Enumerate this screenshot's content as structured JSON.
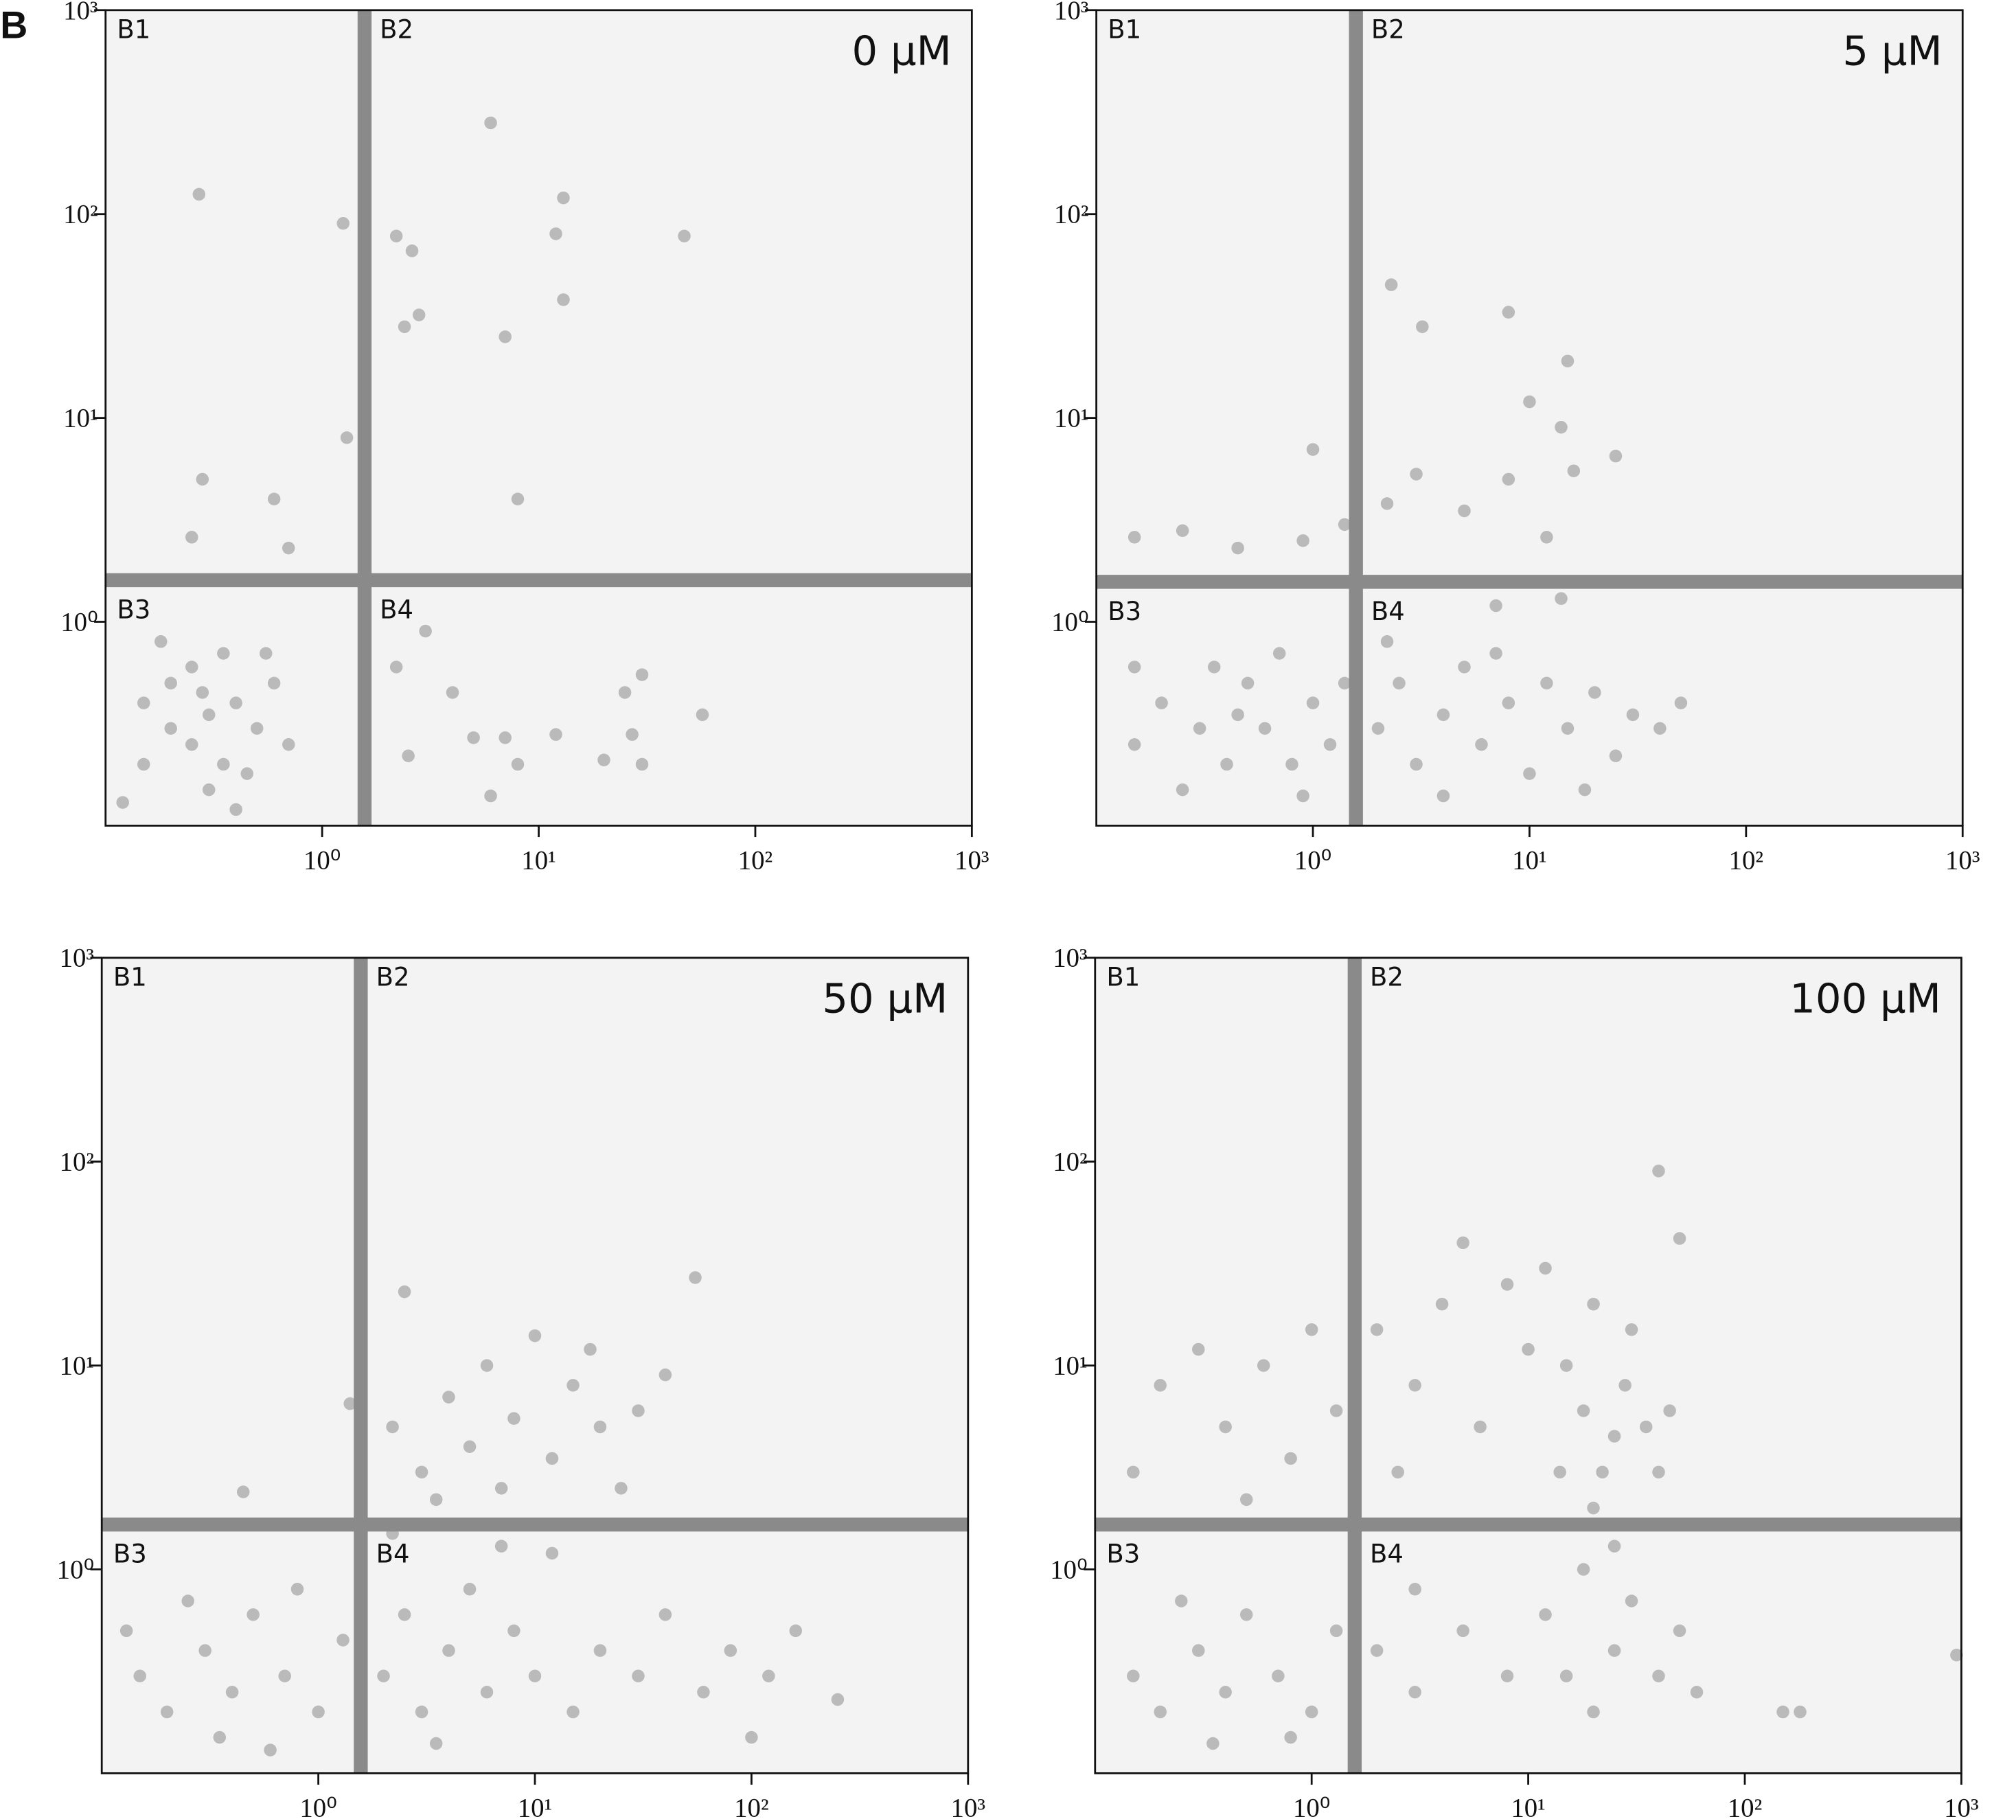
{
  "figure_label": "B",
  "chart_data": [
    {
      "type": "scatter",
      "title": "0 μM",
      "quadrant_labels": [
        "B1",
        "B2",
        "B3",
        "B4"
      ],
      "color": "#8a8a8a",
      "xscale": "log",
      "yscale": "log",
      "xlim": [
        0.1,
        1000
      ],
      "ylim": [
        0.1,
        1000
      ],
      "xticks": [
        {
          "value": 1,
          "label": "10⁰"
        },
        {
          "value": 10,
          "label": "10¹"
        },
        {
          "value": 100,
          "label": "10²"
        },
        {
          "value": 1000,
          "label": "10³"
        }
      ],
      "yticks": [
        {
          "value": 1,
          "label": "10⁰"
        },
        {
          "value": 10,
          "label": "10¹"
        },
        {
          "value": 100,
          "label": "10²"
        },
        {
          "value": 1000,
          "label": "10³"
        }
      ],
      "quadrant_x": 1.57,
      "quadrant_y": 1.6,
      "x": [
        0.15,
        0.2,
        0.25,
        0.3,
        0.35,
        0.4,
        0.3,
        0.2,
        0.5,
        0.6,
        0.25,
        0.15,
        0.45,
        0.7,
        0.35,
        0.12,
        0.55,
        0.28,
        0.4,
        0.18,
        0.27,
        1.25,
        1.3,
        0.28,
        0.6,
        0.7,
        0.25,
        2.2,
        2.6,
        2.8,
        2.4,
        6,
        12,
        13,
        13,
        47,
        7,
        8,
        2.2,
        3,
        4,
        5,
        7,
        8,
        12,
        25,
        30,
        27,
        57,
        20,
        30,
        2.5,
        6
      ],
      "y": [
        0.2,
        0.3,
        0.25,
        0.35,
        0.2,
        0.4,
        0.15,
        0.5,
        0.3,
        0.5,
        0.6,
        0.4,
        0.18,
        0.25,
        0.7,
        0.13,
        0.7,
        0.45,
        0.12,
        0.8,
        125,
        90,
        8,
        5,
        4,
        2.3,
        2.6,
        78,
        66,
        32,
        28,
        280,
        80,
        120,
        38,
        78,
        25,
        4,
        0.6,
        0.9,
        0.45,
        0.27,
        0.27,
        0.2,
        0.28,
        0.45,
        0.55,
        0.28,
        0.35,
        0.21,
        0.2,
        0.22,
        0.14
      ]
    },
    {
      "type": "scatter",
      "title": "5 μM",
      "quadrant_labels": [
        "B1",
        "B2",
        "B3",
        "B4"
      ],
      "color": "#8a8a8a",
      "xscale": "log",
      "yscale": "log",
      "xlim": [
        0.1,
        1000
      ],
      "ylim": [
        0.1,
        1000
      ],
      "xticks": [
        {
          "value": 1,
          "label": "10⁰"
        },
        {
          "value": 10,
          "label": "10¹"
        },
        {
          "value": 100,
          "label": "10²"
        },
        {
          "value": 1000,
          "label": "10³"
        }
      ],
      "yticks": [
        {
          "value": 1,
          "label": "10⁰"
        },
        {
          "value": 10,
          "label": "10¹"
        },
        {
          "value": 100,
          "label": "10²"
        },
        {
          "value": 1000,
          "label": "10³"
        }
      ],
      "quadrant_x": 1.58,
      "quadrant_y": 1.57,
      "x": [
        0.15,
        0.2,
        0.3,
        0.4,
        0.5,
        0.6,
        0.8,
        1,
        1.2,
        0.25,
        0.35,
        0.7,
        0.9,
        0.15,
        1.4,
        0.45,
        2,
        2.5,
        3,
        4,
        5,
        6,
        8,
        10,
        12,
        15,
        20,
        25,
        30,
        40,
        50,
        2.2,
        4,
        7,
        18,
        2.3,
        3.2,
        8,
        15,
        10,
        14,
        25,
        16,
        8,
        3,
        2.2,
        5,
        12,
        1,
        0.15,
        0.25,
        0.45,
        0.9,
        1.4,
        14,
        7
      ],
      "y": [
        0.25,
        0.4,
        0.3,
        0.2,
        0.5,
        0.3,
        0.2,
        0.4,
        0.25,
        0.15,
        0.6,
        0.7,
        0.14,
        0.6,
        0.5,
        0.35,
        0.3,
        0.5,
        0.2,
        0.35,
        0.6,
        0.25,
        0.4,
        0.18,
        0.5,
        0.3,
        0.45,
        0.22,
        0.35,
        0.3,
        0.4,
        0.8,
        0.14,
        0.7,
        0.15,
        45,
        28,
        33,
        19,
        12,
        9,
        6.5,
        5.5,
        5,
        5.3,
        3.8,
        3.5,
        2.6,
        7,
        2.6,
        2.8,
        2.3,
        2.5,
        3,
        1.3,
        1.2
      ]
    },
    {
      "type": "scatter",
      "title": "50 μM",
      "quadrant_labels": [
        "B1",
        "B2",
        "B3",
        "B4"
      ],
      "color": "#8a8a8a",
      "xscale": "log",
      "yscale": "log",
      "xlim": [
        0.1,
        1000
      ],
      "ylim": [
        0.1,
        1000
      ],
      "xticks": [
        {
          "value": 1,
          "label": "10⁰"
        },
        {
          "value": 10,
          "label": "10¹"
        },
        {
          "value": 100,
          "label": "10²"
        },
        {
          "value": 1000,
          "label": "10³"
        }
      ],
      "yticks": [
        {
          "value": 1,
          "label": "10⁰"
        },
        {
          "value": 10,
          "label": "10¹"
        },
        {
          "value": 100,
          "label": "10²"
        },
        {
          "value": 1000,
          "label": "10³"
        }
      ],
      "quadrant_x": 1.57,
      "quadrant_y": 1.66,
      "x": [
        0.15,
        0.2,
        0.3,
        0.4,
        0.5,
        0.7,
        1,
        1.3,
        0.25,
        0.8,
        0.35,
        0.6,
        0.13,
        2,
        2.5,
        3,
        4,
        5,
        6,
        8,
        10,
        12,
        15,
        20,
        30,
        40,
        60,
        80,
        120,
        160,
        250,
        2.2,
        7,
        3.5,
        100,
        2.5,
        2.2,
        3,
        4,
        5,
        6,
        8,
        10,
        12,
        15,
        20,
        25,
        30,
        40,
        55,
        3.5,
        7,
        18,
        0.45,
        1.4
      ],
      "y": [
        0.3,
        0.2,
        0.4,
        0.25,
        0.6,
        0.3,
        0.2,
        0.45,
        0.7,
        0.8,
        0.15,
        0.13,
        0.5,
        0.3,
        0.6,
        0.2,
        0.4,
        0.8,
        0.25,
        0.5,
        0.3,
        1.2,
        0.2,
        0.4,
        0.3,
        0.6,
        0.25,
        0.4,
        0.3,
        0.5,
        0.23,
        1.5,
        1.3,
        0.14,
        0.15,
        23,
        5,
        3,
        7,
        4,
        10,
        5.5,
        14,
        3.5,
        8,
        5,
        2.5,
        6,
        9,
        27,
        2.2,
        2.5,
        12,
        2.4,
        6.5
      ]
    },
    {
      "type": "scatter",
      "title": "100 μM",
      "quadrant_labels": [
        "B1",
        "B2",
        "B3",
        "B4"
      ],
      "color": "#8a8a8a",
      "xscale": "log",
      "yscale": "log",
      "xlim": [
        0.1,
        1000
      ],
      "ylim": [
        0.1,
        1000
      ],
      "xticks": [
        {
          "value": 1,
          "label": "10⁰"
        },
        {
          "value": 10,
          "label": "10¹"
        },
        {
          "value": 100,
          "label": "10²"
        },
        {
          "value": 1000,
          "label": "10³"
        }
      ],
      "yticks": [
        {
          "value": 1,
          "label": "10⁰"
        },
        {
          "value": 10,
          "label": "10¹"
        },
        {
          "value": 100,
          "label": "10²"
        },
        {
          "value": 1000,
          "label": "10³"
        }
      ],
      "quadrant_x": 1.58,
      "quadrant_y": 1.66,
      "x": [
        0.15,
        0.2,
        0.3,
        0.4,
        0.5,
        0.7,
        1,
        1.3,
        0.25,
        0.8,
        0.35,
        2,
        3,
        5,
        8,
        12,
        15,
        20,
        25,
        30,
        40,
        50,
        60,
        18,
        25,
        150,
        180,
        950,
        3,
        20,
        22,
        25,
        18,
        28,
        15,
        35,
        2,
        3,
        4,
        5,
        6,
        8,
        10,
        12,
        14,
        20,
        30,
        40,
        50,
        2.5,
        40,
        45,
        0.15,
        0.2,
        0.3,
        0.4,
        0.6,
        0.8,
        1,
        1.3,
        0.5
      ],
      "y": [
        0.3,
        0.2,
        0.4,
        0.25,
        0.6,
        0.3,
        0.2,
        0.5,
        0.7,
        0.15,
        0.14,
        0.4,
        0.25,
        0.5,
        0.3,
        0.6,
        0.3,
        0.2,
        0.4,
        0.7,
        0.3,
        0.5,
        0.25,
        1,
        1.3,
        0.2,
        0.2,
        0.38,
        0.8,
        2,
        3,
        4.5,
        6,
        8,
        10,
        5,
        15,
        8,
        20,
        40,
        5,
        25,
        12,
        30,
        3,
        20,
        15,
        90,
        42,
        3,
        3,
        6,
        3,
        8,
        12,
        5,
        10,
        3.5,
        15,
        6,
        2.2
      ]
    }
  ]
}
